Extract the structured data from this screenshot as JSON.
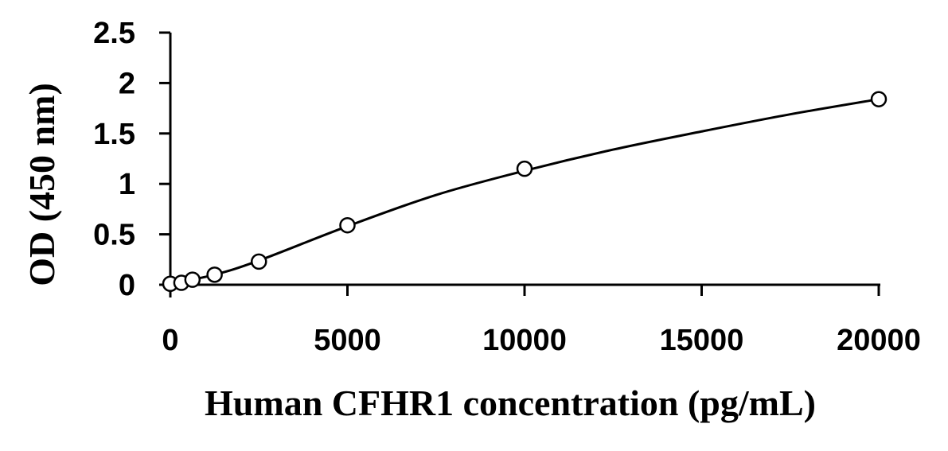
{
  "chart_data": {
    "type": "scatter",
    "title": "",
    "xlabel": "Human CFHR1 concentration (pg/mL)",
    "ylabel": "OD (450 nm)",
    "xlim": [
      0,
      20000
    ],
    "ylim": [
      0,
      2.5
    ],
    "x_ticks": [
      0,
      5000,
      10000,
      15000,
      20000
    ],
    "x_tick_labels": [
      "0",
      "5000",
      "10000",
      "15000",
      "20000"
    ],
    "y_ticks": [
      0,
      0.5,
      1,
      1.5,
      2,
      2.5
    ],
    "y_tick_labels": [
      "0",
      "0.5",
      "1",
      "1.5",
      "2",
      "2.5"
    ],
    "grid": false,
    "legend": "none",
    "series": [
      {
        "type": "scatter",
        "marker": "open-circle",
        "x": [
          0,
          312.5,
          625,
          1250,
          2500,
          5000,
          10000,
          20000
        ],
        "y": [
          0.01,
          0.02,
          0.05,
          0.1,
          0.23,
          0.59,
          1.15,
          1.84
        ]
      },
      {
        "type": "line",
        "style": "fitted-curve",
        "x": [
          0,
          1250,
          2500,
          5000,
          7500,
          10000,
          12500,
          15000,
          17500,
          20000
        ],
        "y": [
          0.01,
          0.1,
          0.24,
          0.58,
          0.89,
          1.13,
          1.34,
          1.52,
          1.69,
          1.84
        ]
      }
    ],
    "colors": {
      "axis": "#000000",
      "marker_stroke": "#000000",
      "marker_fill": "#ffffff",
      "curve": "#000000"
    }
  }
}
